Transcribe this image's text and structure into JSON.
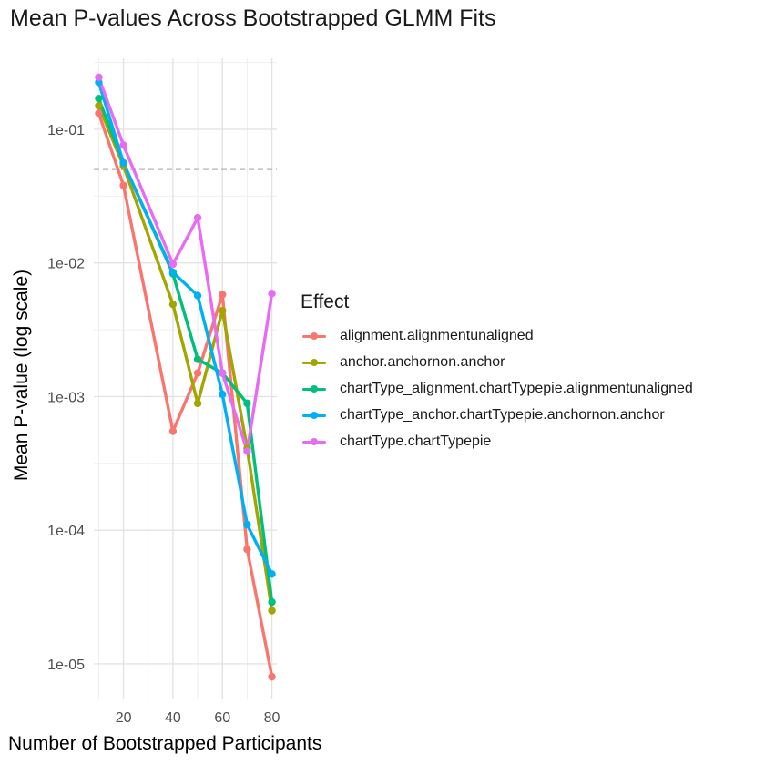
{
  "chart_data": {
    "type": "line",
    "title": "Mean P-values Across Bootstrapped GLMM Fits",
    "xlabel": "Number of Bootstrapped Participants",
    "ylabel": "Mean P-value (log scale)",
    "x_scale": "linear",
    "y_scale": "log10",
    "xlim": [
      8,
      82
    ],
    "ylim": [
      5.5e-06,
      0.34
    ],
    "x_ticks": [
      20,
      40,
      60,
      80
    ],
    "y_ticks": [
      1e-05,
      0.0001,
      0.001,
      0.01,
      0.1
    ],
    "y_tick_labels": [
      "1e-05",
      "1e-04",
      "1e-03",
      "1e-02",
      "1e-01"
    ],
    "reference_line": {
      "y": 0.05,
      "style": "dashed",
      "color": "#b3b3b3"
    },
    "grid": true,
    "legend": {
      "title": "Effect",
      "position": "right"
    },
    "x": [
      10,
      20,
      40,
      50,
      60,
      70,
      80
    ],
    "series": [
      {
        "name": "alignment.alignmentunaligned",
        "color": "#F8766D",
        "values": [
          0.132,
          0.038,
          0.00055,
          0.0015,
          0.0058,
          7.2e-05,
          8e-06
        ]
      },
      {
        "name": "anchor.anchornon.anchor",
        "color": "#A3A500",
        "values": [
          0.15,
          0.053,
          0.0049,
          0.00089,
          0.0044,
          0.00041,
          2.5e-05
        ]
      },
      {
        "name": "chartType_alignment.chartTypepie.alignmentunaligned",
        "color": "#00BF7D",
        "values": [
          0.17,
          0.056,
          0.0083,
          0.0019,
          0.0015,
          0.00089,
          2.9e-05
        ]
      },
      {
        "name": "chartType_anchor.chartTypepie.anchornon.anchor",
        "color": "#00B0F6",
        "values": [
          0.225,
          0.056,
          0.0085,
          0.0057,
          0.00104,
          0.00011,
          4.7e-05
        ]
      },
      {
        "name": "chartType.chartTypepie",
        "color": "#E76BF3",
        "values": [
          0.245,
          0.076,
          0.0098,
          0.0218,
          0.0015,
          0.00039,
          0.0059
        ]
      }
    ]
  }
}
